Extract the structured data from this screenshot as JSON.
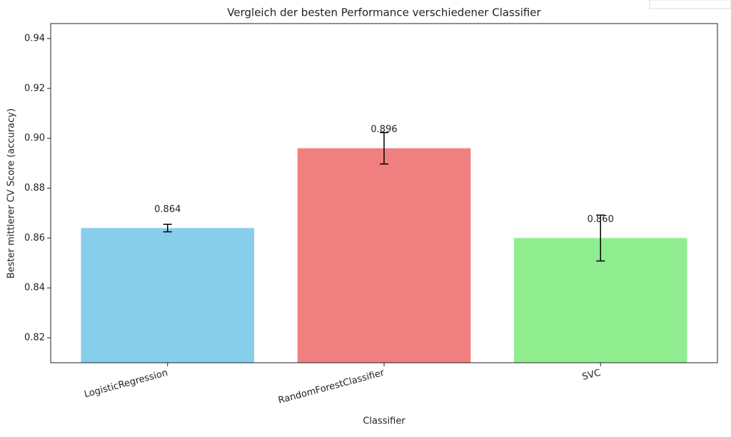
{
  "chart_data": {
    "type": "bar",
    "title": "Vergleich der besten Performance verschiedener Classifier",
    "x_label": "Classifier",
    "y_label": "Bester mittlerer CV Score (accuracy)",
    "categories": [
      "LogisticRegression",
      "RandomForestClassifier",
      "SVC"
    ],
    "values": [
      0.864,
      0.896,
      0.86
    ],
    "value_labels": [
      "0.864",
      "0.896",
      "0.860"
    ],
    "errors": [
      0.0015,
      0.0063,
      0.0092
    ],
    "colors": [
      "#87ceeb",
      "#f08080",
      "#90ee90"
    ],
    "ylim": [
      0.81,
      0.946
    ],
    "yticks": [
      0.82,
      0.84,
      0.86,
      0.88,
      {
        "value": 0.9,
        "label": "0.90"
      },
      0.92,
      0.94
    ]
  }
}
